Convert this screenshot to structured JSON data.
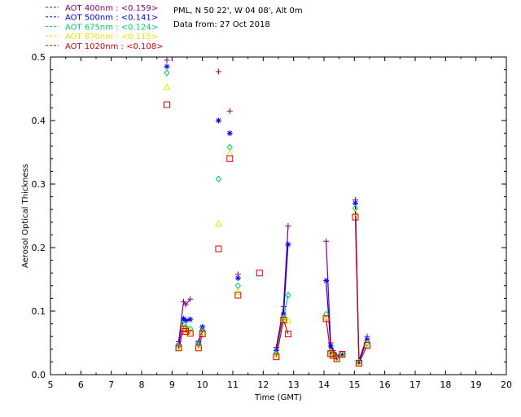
{
  "chart_data": {
    "type": "line",
    "info": {
      "site": "PML, N 50 22', W 04 08', Alt 0m",
      "date": "Data from: 27 Oct 2018"
    },
    "xlabel": "Time (GMT)",
    "ylabel": "Aerosol Optical Thickness",
    "xlim": [
      5,
      20
    ],
    "ylim": [
      0,
      0.5
    ],
    "xticks": [
      5,
      6,
      7,
      8,
      9,
      10,
      11,
      12,
      13,
      14,
      15,
      16,
      17,
      18,
      19,
      20
    ],
    "yticks": [
      0.0,
      0.1,
      0.2,
      0.3,
      0.4,
      0.5
    ],
    "ytick_labels": [
      "0.0",
      "0.1",
      "0.2",
      "0.3",
      "0.4",
      "0.5"
    ],
    "legend_placement": "top-left",
    "series": [
      {
        "name": "AOT 400nm : <0.159>",
        "color": "#800080",
        "marker": "plus",
        "points": [
          [
            8.83,
            0.495
          ],
          [
            9.22,
            0.052
          ],
          [
            9.38,
            0.115
          ],
          [
            9.45,
            0.11
          ],
          [
            9.6,
            0.119
          ],
          [
            9.87,
            0.052
          ],
          [
            10.0,
            0.07
          ],
          [
            10.53,
            0.477
          ],
          [
            10.9,
            0.415
          ],
          [
            11.17,
            0.158
          ],
          [
            12.43,
            0.043
          ],
          [
            12.67,
            0.107
          ],
          [
            12.82,
            0.234
          ],
          [
            14.07,
            0.21
          ],
          [
            14.22,
            0.05
          ],
          [
            14.3,
            0.038
          ],
          [
            14.42,
            0.03
          ],
          [
            14.6,
            0.033
          ],
          [
            15.03,
            0.275
          ],
          [
            15.15,
            0.022
          ],
          [
            15.42,
            0.06
          ]
        ]
      },
      {
        "name": "AOT 500nm : <0.141>",
        "color": "#0000ff",
        "marker": "star",
        "points": [
          [
            8.83,
            0.485
          ],
          [
            9.22,
            0.047
          ],
          [
            9.38,
            0.088
          ],
          [
            9.45,
            0.085
          ],
          [
            9.6,
            0.087
          ],
          [
            9.87,
            0.05
          ],
          [
            10.0,
            0.075
          ],
          [
            10.53,
            0.4
          ],
          [
            10.9,
            0.38
          ],
          [
            11.17,
            0.152
          ],
          [
            12.43,
            0.038
          ],
          [
            12.67,
            0.095
          ],
          [
            12.82,
            0.205
          ],
          [
            14.07,
            0.148
          ],
          [
            14.22,
            0.045
          ],
          [
            14.3,
            0.035
          ],
          [
            14.42,
            0.028
          ],
          [
            14.6,
            0.032
          ],
          [
            15.03,
            0.27
          ],
          [
            15.15,
            0.02
          ],
          [
            15.42,
            0.055
          ]
        ]
      },
      {
        "name": "AOT 675nm : <0.124>",
        "color": "#00cc66",
        "marker": "diamond",
        "points": [
          [
            8.83,
            0.475
          ],
          [
            9.22,
            0.045
          ],
          [
            9.38,
            0.08
          ],
          [
            9.45,
            0.075
          ],
          [
            9.6,
            0.072
          ],
          [
            9.87,
            0.048
          ],
          [
            10.0,
            0.07
          ],
          [
            10.53,
            0.308
          ],
          [
            10.9,
            0.358
          ],
          [
            11.17,
            0.14
          ],
          [
            12.43,
            0.033
          ],
          [
            12.67,
            0.09
          ],
          [
            12.82,
            0.125
          ],
          [
            14.07,
            0.095
          ],
          [
            14.22,
            0.037
          ],
          [
            14.3,
            0.033
          ],
          [
            14.42,
            0.027
          ],
          [
            14.6,
            0.032
          ],
          [
            15.03,
            0.262
          ],
          [
            15.15,
            0.02
          ],
          [
            15.42,
            0.05
          ]
        ]
      },
      {
        "name": "AOT 870nm : <0.115>",
        "color": "#e6e600",
        "marker": "triangle",
        "points": [
          [
            8.83,
            0.453
          ],
          [
            9.22,
            0.043
          ],
          [
            9.38,
            0.075
          ],
          [
            9.45,
            0.07
          ],
          [
            9.6,
            0.068
          ],
          [
            9.87,
            0.045
          ],
          [
            10.0,
            0.066
          ],
          [
            10.53,
            0.238
          ],
          [
            10.9,
            0.348
          ],
          [
            11.17,
            0.13
          ],
          [
            12.43,
            0.03
          ],
          [
            12.67,
            0.088
          ],
          [
            12.82,
            0.085
          ],
          [
            14.07,
            0.09
          ],
          [
            14.22,
            0.035
          ],
          [
            14.3,
            0.031
          ],
          [
            14.42,
            0.025
          ],
          [
            14.6,
            0.032
          ],
          [
            15.03,
            0.255
          ],
          [
            15.15,
            0.019
          ],
          [
            15.42,
            0.048
          ]
        ]
      },
      {
        "name": "AOT 1020nm : <0.108>",
        "color": "#e00000",
        "marker": "square",
        "points": [
          [
            8.83,
            0.425
          ],
          [
            9.22,
            0.042
          ],
          [
            9.38,
            0.072
          ],
          [
            9.45,
            0.068
          ],
          [
            9.6,
            0.065
          ],
          [
            9.87,
            0.042
          ],
          [
            10.0,
            0.064
          ],
          [
            10.53,
            0.198
          ],
          [
            10.9,
            0.34
          ],
          [
            11.17,
            0.125
          ],
          [
            11.88,
            0.16
          ],
          [
            12.43,
            0.028
          ],
          [
            12.67,
            0.086
          ],
          [
            12.82,
            0.064
          ],
          [
            14.07,
            0.088
          ],
          [
            14.22,
            0.033
          ],
          [
            14.3,
            0.03
          ],
          [
            14.42,
            0.025
          ],
          [
            14.6,
            0.032
          ],
          [
            15.03,
            0.248
          ],
          [
            15.15,
            0.018
          ],
          [
            15.42,
            0.046
          ]
        ]
      }
    ],
    "segments": [
      {
        "series": 0,
        "from": 1,
        "to": 4
      },
      {
        "series": 0,
        "from": 5,
        "to": 6
      },
      {
        "series": 0,
        "from": 10,
        "to": 12
      },
      {
        "series": 0,
        "from": 13,
        "to": 17
      },
      {
        "series": 0,
        "from": 18,
        "to": 20
      },
      {
        "series": 1,
        "from": 1,
        "to": 4
      },
      {
        "series": 1,
        "from": 5,
        "to": 6
      },
      {
        "series": 1,
        "from": 10,
        "to": 12
      },
      {
        "series": 1,
        "from": 13,
        "to": 17
      },
      {
        "series": 1,
        "from": 18,
        "to": 20
      },
      {
        "series": 2,
        "from": 10,
        "to": 12
      },
      {
        "series": 3,
        "from": 10,
        "to": 12
      },
      {
        "series": 4,
        "from": 1,
        "to": 4
      },
      {
        "series": 4,
        "from": 5,
        "to": 6
      },
      {
        "series": 4,
        "from": 11,
        "to": 13
      },
      {
        "series": 4,
        "from": 14,
        "to": 18
      },
      {
        "series": 4,
        "from": 19,
        "to": 21
      }
    ]
  }
}
